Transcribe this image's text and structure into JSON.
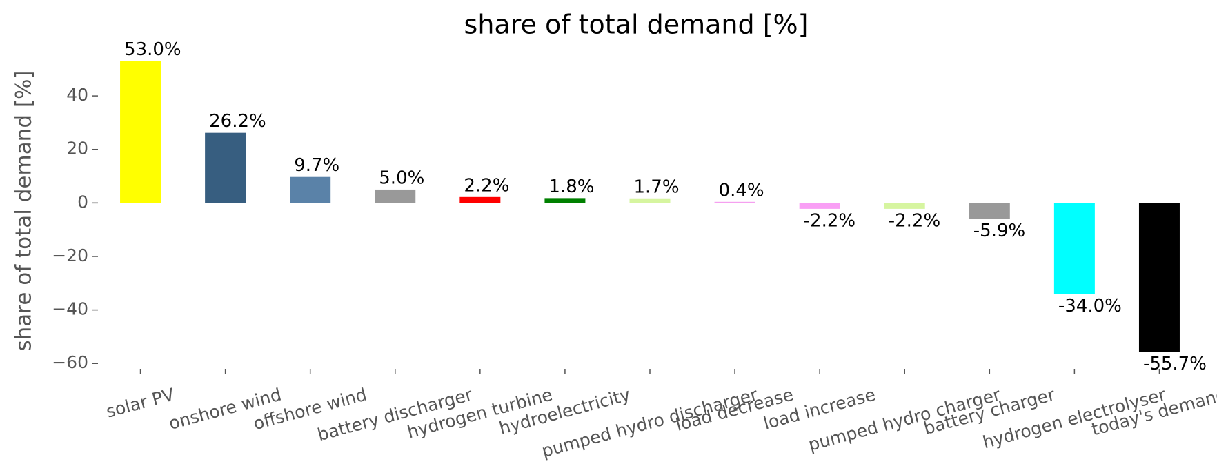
{
  "chart_data": {
    "type": "bar",
    "title": "share of total demand [%]",
    "ylabel": "share of total demand [%]",
    "categories": [
      "solar PV",
      "onshore wind",
      "offshore wind",
      "battery discharger",
      "hydrogen turbine",
      "hydroelectricity",
      "pumped hydro discharger",
      "load decrease",
      "load increase",
      "pumped hydro charger",
      "battery charger",
      "hydrogen electrolyser",
      "today's demand"
    ],
    "values": [
      53.0,
      26.2,
      9.7,
      5.0,
      2.2,
      1.8,
      1.7,
      0.4,
      -2.2,
      -2.2,
      -5.9,
      -34.0,
      -55.7
    ],
    "value_labels": [
      "53.0%",
      "26.2%",
      "9.7%",
      "5.0%",
      "2.2%",
      "1.8%",
      "1.7%",
      "0.4%",
      "-2.2%",
      "-2.2%",
      "-5.9%",
      "-34.0%",
      "-55.7%"
    ],
    "colors": [
      "#ffff00",
      "#375e80",
      "#5a82a8",
      "#999999",
      "#ff0000",
      "#008000",
      "#d6f5a0",
      "#f5a0f0",
      "#f99ff5",
      "#d6f5a0",
      "#999999",
      "#00ffff",
      "#000000"
    ],
    "ylim": [
      -62,
      56
    ],
    "yticks": [
      {
        "value": -60,
        "label": "−60"
      },
      {
        "value": -40,
        "label": "−40"
      },
      {
        "value": -20,
        "label": "−20"
      },
      0,
      20,
      40
    ],
    "grid": false
  }
}
